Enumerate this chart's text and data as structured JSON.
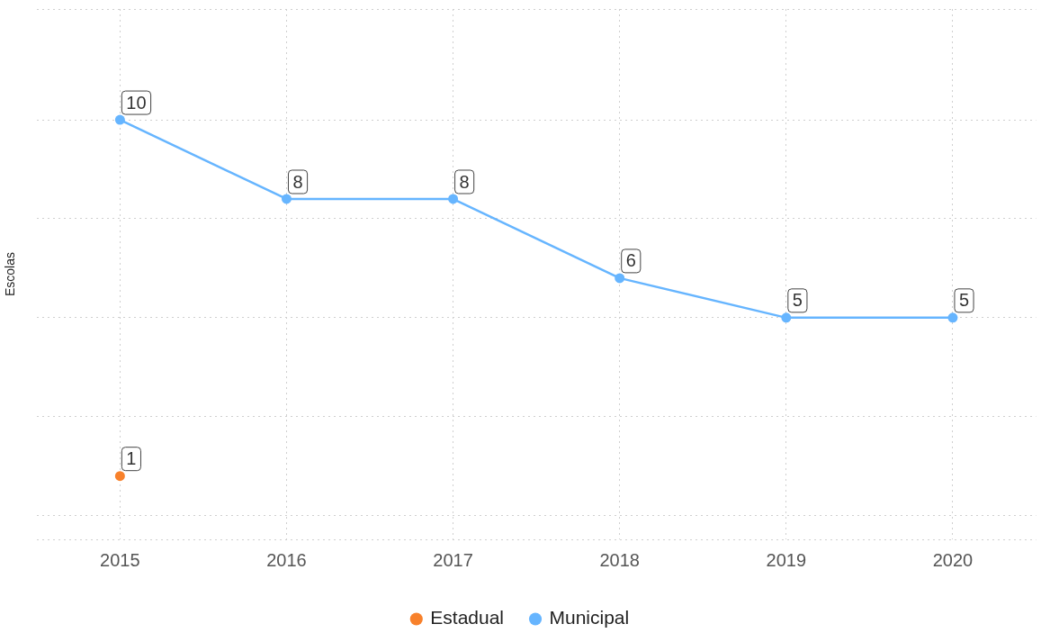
{
  "chart_data": {
    "type": "line",
    "ylabel": "Escolas",
    "categories": [
      "2015",
      "2016",
      "2017",
      "2018",
      "2019",
      "2020"
    ],
    "series": [
      {
        "name": "Estadual",
        "color": "#f8812b",
        "values": [
          1,
          null,
          null,
          null,
          null,
          null
        ]
      },
      {
        "name": "Municipal",
        "color": "#66b5ff",
        "values": [
          10,
          8,
          8,
          6,
          5,
          5
        ]
      }
    ],
    "ylim": [
      -0.6,
      12.8
    ],
    "tick_labels": "x",
    "grid": true,
    "legend": "bottom",
    "marker": "circle",
    "line_style": "solid",
    "data_labels": true
  }
}
